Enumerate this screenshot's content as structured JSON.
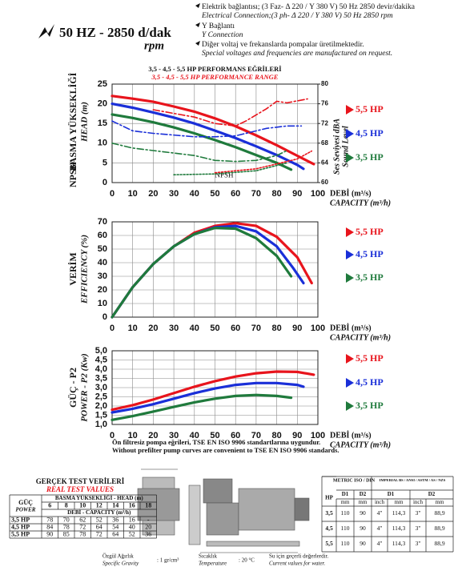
{
  "header": {
    "frequency": "50 HZ - 2850 d/dak",
    "rpm": "rpm",
    "notes": [
      "Elektrik bağlantısı; (3 Faz- Δ 220 / Y 380 V) 50 Hz 2850 devir/dakika",
      "Electrical Connection;(3 ph- Δ 220 / Y 380 V) 50 Hz 2850 rpm",
      "Y Bağlantı",
      "Y Connection",
      "Diğer voltaj ve frekanslarda pompalar üretilmektedir.",
      "Special voltages and frequencies  are manufactured on request."
    ]
  },
  "chart_data": [
    {
      "type": "line",
      "title": "3,5 - 4,5 - 5,5 HP PERFORMANS EĞRİLERİ",
      "subtitle": "3,5 - 4,5 - 5,5 HP PERFORMANCE RANGE",
      "y_label": "BASMA YÜKSEKLİĞİ",
      "y_label_en": "HEAD (m)",
      "y_label_2": "NPSH",
      "y2_label": "Ses Seviyesi dBA",
      "y2_label_en": "Sound Level",
      "annotation": "NPSH",
      "x_label": "DEBİ (m³/s)",
      "x_label_en": "CAPACITY (m³/h)",
      "xlim": [
        0,
        100
      ],
      "xticks": [
        0,
        10,
        20,
        30,
        40,
        50,
        60,
        70,
        80,
        90,
        100
      ],
      "ylim": [
        0,
        25
      ],
      "yticks": [
        0,
        5,
        10,
        15,
        20,
        25
      ],
      "y2lim": [
        60,
        80
      ],
      "y2ticks": [
        60,
        64,
        68,
        72,
        76,
        80
      ],
      "grid": true,
      "series": [
        {
          "name": "5,5 HP",
          "color": "#e8141c",
          "x": [
            0,
            10,
            20,
            30,
            40,
            50,
            60,
            70,
            80,
            90,
            98
          ],
          "values": [
            22,
            21.3,
            20.5,
            19.3,
            18,
            16.3,
            14.3,
            12,
            9.5,
            6.8,
            4.7
          ]
        },
        {
          "name": "4,5 HP",
          "color": "#1a2fd8",
          "x": [
            0,
            10,
            20,
            30,
            40,
            50,
            60,
            70,
            80,
            90,
            93
          ],
          "values": [
            20,
            19,
            17.8,
            16.5,
            15,
            13.2,
            11.3,
            9.2,
            7,
            4.5,
            3.5
          ]
        },
        {
          "name": "3,5 HP",
          "color": "#1f7a3c",
          "x": [
            0,
            10,
            20,
            30,
            40,
            50,
            60,
            70,
            80,
            87
          ],
          "values": [
            17.3,
            16.4,
            15.3,
            14,
            12.5,
            10.8,
            9,
            7,
            5,
            3.3
          ]
        },
        {
          "color": "#e8141c",
          "dash": "8 3 2 3",
          "axis": "y2",
          "x": [
            20,
            40,
            50,
            60,
            65,
            75,
            80,
            85,
            95
          ],
          "values": [
            74.8,
            73.3,
            72,
            71.5,
            72.5,
            75,
            76.5,
            76.2,
            77
          ]
        },
        {
          "color": "#1a2fd8",
          "dash": "8 3 2 3",
          "axis": "y2",
          "x": [
            0,
            10,
            20,
            40,
            50,
            60,
            65,
            75,
            85,
            92
          ],
          "values": [
            72.5,
            70.5,
            70,
            69.3,
            69.3,
            69.5,
            70,
            71,
            71.5,
            71.5
          ]
        },
        {
          "color": "#1f7a3c",
          "dash": "8 3 2 3",
          "axis": "y2",
          "x": [
            0,
            10,
            20,
            30,
            40,
            50,
            60,
            70,
            80,
            85
          ],
          "values": [
            68,
            67,
            66.5,
            66,
            65.5,
            64.5,
            64.3,
            64.5,
            65.5,
            66.5
          ]
        },
        {
          "color": "#1f7a3c",
          "dash": "2 2",
          "x": [
            30,
            50,
            70,
            85
          ],
          "values": [
            2,
            2.2,
            3,
            5
          ]
        },
        {
          "color": "#e8141c",
          "dash": "2 2",
          "x": [
            50,
            70,
            90,
            97
          ],
          "values": [
            2.5,
            3.5,
            6,
            8
          ]
        }
      ]
    },
    {
      "type": "line",
      "y_label": "VERİM",
      "y_label_en": "EFFICIENCY (%)",
      "x_label": "DEBİ (m³/s)",
      "x_label_en": "CAPACITY (m³/h)",
      "xlim": [
        0,
        100
      ],
      "xticks": [
        0,
        10,
        20,
        30,
        40,
        50,
        60,
        70,
        80,
        90,
        100
      ],
      "ylim": [
        0,
        70
      ],
      "yticks": [
        0,
        10,
        20,
        30,
        40,
        50,
        60,
        70
      ],
      "grid": true,
      "series": [
        {
          "name": "5,5 HP",
          "color": "#e8141c",
          "x": [
            0,
            10,
            20,
            30,
            40,
            50,
            60,
            70,
            80,
            90,
            97
          ],
          "values": [
            0,
            22,
            39,
            52,
            62,
            67,
            69,
            67,
            59,
            44,
            25
          ]
        },
        {
          "name": "4,5 HP",
          "color": "#1a2fd8",
          "x": [
            0,
            10,
            20,
            30,
            40,
            50,
            60,
            70,
            80,
            88,
            93
          ],
          "values": [
            0,
            22,
            39,
            52,
            61,
            66,
            67,
            63,
            52,
            36,
            25
          ]
        },
        {
          "name": "3,5 HP",
          "color": "#1f7a3c",
          "x": [
            0,
            10,
            20,
            30,
            40,
            50,
            60,
            70,
            80,
            87
          ],
          "values": [
            0,
            22,
            39,
            52,
            61,
            65.5,
            65,
            58,
            45,
            30
          ]
        }
      ]
    },
    {
      "type": "line",
      "y_label": "GÜÇ - P2",
      "y_label_en": "POWER - P2 (Kw)",
      "x_label": "DEBİ (m³/s)",
      "x_label_en": "CAPACITY (m³/h)",
      "xlim": [
        0,
        100
      ],
      "xticks": [
        0,
        10,
        20,
        30,
        40,
        50,
        60,
        70,
        80,
        90,
        100
      ],
      "ylim": [
        1,
        5
      ],
      "yticks": [
        {
          "value": 1,
          "label": "1,0"
        },
        {
          "value": 1.5,
          "label": "1,5"
        },
        {
          "value": 2,
          "label": "2,0"
        },
        {
          "value": 2.5,
          "label": "2,5"
        },
        {
          "value": 3,
          "label": "3,0"
        },
        {
          "value": 3.5,
          "label": "3,5"
        },
        {
          "value": 4,
          "label": "4,0"
        },
        {
          "value": 4.5,
          "label": "4,5"
        },
        {
          "value": 5,
          "label": "5,0"
        }
      ],
      "grid": true,
      "series": [
        {
          "name": "5,5 HP",
          "color": "#e8141c",
          "x": [
            0,
            10,
            20,
            30,
            40,
            50,
            60,
            70,
            80,
            90,
            98
          ],
          "values": [
            1.8,
            2.05,
            2.35,
            2.7,
            3.05,
            3.35,
            3.6,
            3.78,
            3.87,
            3.85,
            3.7
          ]
        },
        {
          "name": "4,5 HP",
          "color": "#1a2fd8",
          "x": [
            0,
            10,
            20,
            30,
            40,
            50,
            60,
            70,
            80,
            90,
            93
          ],
          "values": [
            1.65,
            1.85,
            2.1,
            2.4,
            2.7,
            2.95,
            3.15,
            3.25,
            3.25,
            3.15,
            3.05
          ]
        },
        {
          "name": "3,5 HP",
          "color": "#1f7a3c",
          "x": [
            0,
            10,
            20,
            30,
            40,
            50,
            60,
            70,
            80,
            87
          ],
          "values": [
            1.25,
            1.45,
            1.7,
            1.95,
            2.2,
            2.4,
            2.55,
            2.6,
            2.55,
            2.45
          ]
        }
      ]
    }
  ],
  "footnotes": [
    "Ön filtresiz pompa eğrileri, TSE EN ISO 9906 standartlarına uygundur.",
    "Without prefilter pump curves are convenient to TSE EN ISO 9906 standards."
  ],
  "real_test": {
    "title": "GERÇEK TEST VERİLERİ",
    "subtitle": "REAL TEST VALUES",
    "power_label": "GÜÇ",
    "power_label_en": "POWER",
    "head_label": "BASMA YÜKSEKLİĞİ - HEAD (m)",
    "heads": [
      6,
      8,
      10,
      12,
      14,
      16,
      18
    ],
    "capacity_label": "DEBİ - CAPACITY (m³/h)",
    "rows": [
      {
        "power": "3,5 HP",
        "values": [
          78,
          70,
          62,
          52,
          36,
          16,
          "-"
        ]
      },
      {
        "power": "4,5 HP",
        "values": [
          84,
          78,
          72,
          64,
          54,
          40,
          20
        ]
      },
      {
        "power": "5,5 HP",
        "values": [
          90,
          85,
          78,
          72,
          64,
          52,
          36
        ]
      }
    ]
  },
  "dimensions": {
    "metric": "METRIC ISO / DIN",
    "imperial": "IMPERIAL BS / ANSI / ASTM / AS / NZS",
    "hp": "HP",
    "cols": [
      "D1",
      "D2",
      "D1",
      "D2"
    ],
    "units": [
      "mm",
      "mm",
      "inch",
      "mm",
      "inch",
      "mm"
    ],
    "rows": [
      [
        "3,5",
        "110",
        "90",
        "4\"",
        "114,3",
        "3\"",
        "88,9"
      ],
      [
        "4,5",
        "110",
        "90",
        "4\"",
        "114,3",
        "3\"",
        "88,9"
      ],
      [
        "5,5",
        "110",
        "90",
        "4\"",
        "114,3",
        "3\"",
        "88,9"
      ]
    ]
  },
  "conditions": {
    "gravity": "Özgül Ağırlık",
    "gravity_en": "Specific Gravity",
    "gravity_value": ": 1 gr/cm³",
    "temp": "Sıcaklık",
    "temp_en": "Temperature",
    "temp_value": ": 20 °C",
    "note": "Su için geçerli değerlerdir.",
    "note_en": "Current values for water."
  }
}
